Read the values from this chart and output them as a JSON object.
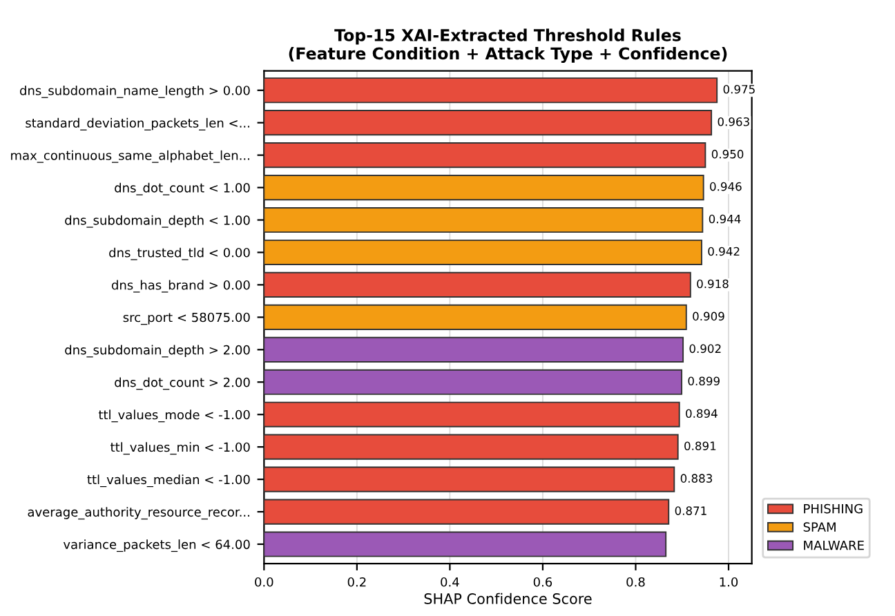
{
  "chart_data": {
    "type": "bar",
    "orientation": "horizontal",
    "title": "Top-15 XAI-Extracted Threshold Rules\n(Feature Condition + Attack Type + Confidence)",
    "xlabel": "SHAP Confidence Score",
    "categories": [
      "dns_subdomain_name_length > 0.00",
      "standard_deviation_packets_len <...",
      "max_continuous_same_alphabet_len...",
      "dns_dot_count < 1.00",
      "dns_subdomain_depth < 1.00",
      "dns_trusted_tld < 0.00",
      "dns_has_brand > 0.00",
      "src_port < 58075.00",
      "dns_subdomain_depth > 2.00",
      "dns_dot_count > 2.00",
      "ttl_values_mode < -1.00",
      "ttl_values_min < -1.00",
      "ttl_values_median < -1.00",
      "average_authority_resource_recor...",
      "variance_packets_len < 64.00"
    ],
    "series": [
      {
        "name": "PHISHING",
        "color": "#e74c3c",
        "values": [
          0.975,
          0.963,
          0.95,
          null,
          null,
          null,
          0.918,
          null,
          null,
          null,
          0.894,
          0.891,
          0.883,
          0.871,
          null
        ],
        "value_labels": [
          "0.975",
          "0.963",
          "0.950",
          null,
          null,
          null,
          "0.918",
          null,
          null,
          null,
          "0.894",
          "0.891",
          "0.883",
          "0.871",
          null
        ]
      },
      {
        "name": "SPAM",
        "color": "#f39c12",
        "values": [
          null,
          null,
          null,
          0.946,
          0.944,
          0.942,
          null,
          0.909,
          null,
          null,
          null,
          null,
          null,
          null,
          null
        ],
        "value_labels": [
          null,
          null,
          null,
          "0.946",
          "0.944",
          "0.942",
          null,
          "0.909",
          null,
          null,
          null,
          null,
          null,
          null,
          null
        ]
      },
      {
        "name": "MALWARE",
        "color": "#9b59b6",
        "values": [
          null,
          null,
          null,
          null,
          null,
          null,
          null,
          null,
          0.902,
          0.899,
          null,
          null,
          null,
          null,
          0.865
        ],
        "value_labels": [
          null,
          null,
          null,
          null,
          null,
          null,
          null,
          null,
          "0.902",
          "0.899",
          null,
          null,
          null,
          null,
          null
        ]
      }
    ],
    "xlim": [
      0,
      1.05
    ],
    "xticks": [
      {
        "value": 0,
        "label": "0.0"
      },
      {
        "value": 0.2,
        "label": "0.2"
      },
      {
        "value": 0.4,
        "label": "0.4"
      },
      {
        "value": 0.6,
        "label": "0.6"
      },
      {
        "value": 0.8,
        "label": "0.8"
      },
      {
        "value": 1.0,
        "label": "1.0"
      }
    ],
    "grid": "x",
    "legend": "bottom right"
  }
}
